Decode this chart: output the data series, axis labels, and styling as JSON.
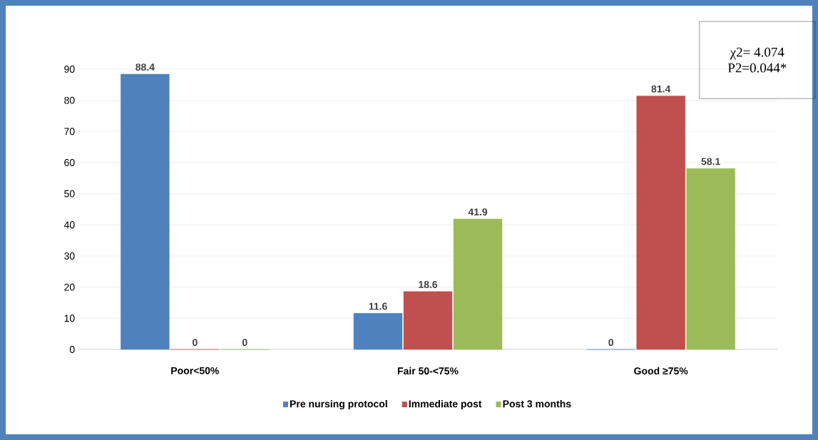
{
  "chart_data": {
    "type": "bar",
    "categories": [
      "Poor<50%",
      "Fair 50-<75%",
      "Good ≥75%"
    ],
    "series": [
      {
        "name": "Pre nursing protocol",
        "color": "#4f81bd",
        "values": [
          88.4,
          11.6,
          0
        ]
      },
      {
        "name": "Immediate post",
        "color": "#c0504d",
        "values": [
          0,
          18.6,
          81.4
        ]
      },
      {
        "name": "Post 3 months",
        "color": "#9bbb59",
        "values": [
          0,
          41.9,
          58.1
        ]
      }
    ],
    "ylim": [
      0,
      90
    ],
    "yticks": [
      0,
      10,
      20,
      30,
      40,
      50,
      60,
      70,
      80,
      90
    ],
    "grid": "y",
    "legend": "bottom",
    "data_labels": true,
    "annotations": [
      "χ2= 4.074",
      "P2=0.044*"
    ]
  }
}
